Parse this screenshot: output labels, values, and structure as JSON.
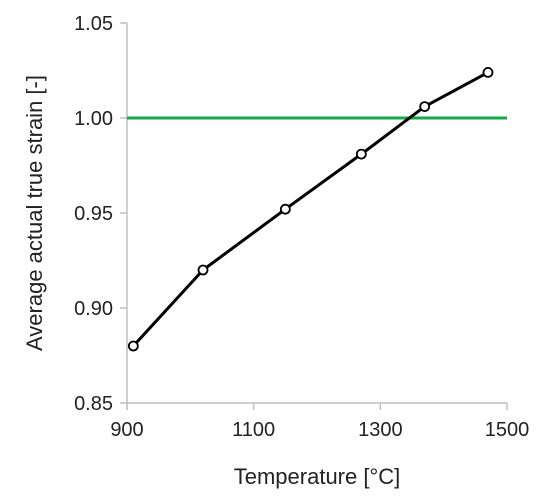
{
  "chart_data": {
    "type": "line",
    "title": "",
    "xlabel": "Temperature [°C]",
    "ylabel": "Average actual true strain [-]",
    "xlim": [
      900,
      1500
    ],
    "ylim": [
      0.85,
      1.05
    ],
    "xticks": [
      900,
      1100,
      1300,
      1500
    ],
    "xtick_labels": [
      "900",
      "1100",
      "1300",
      "1500"
    ],
    "yticks": [
      0.85,
      0.9,
      0.95,
      1.0,
      1.05
    ],
    "ytick_labels": [
      "0.85",
      "0.90",
      "0.95",
      "1.00",
      "1.05"
    ],
    "grid": false,
    "legend": "none",
    "series": [
      {
        "x": [
          910,
          1020,
          1150,
          1270,
          1370,
          1470
        ],
        "y": [
          0.88,
          0.92,
          0.952,
          0.981,
          1.006,
          1.024
        ],
        "color": "#000000",
        "marker": "open-circle"
      }
    ],
    "reference_lines": [
      {
        "y": 1.0,
        "color": "#1aa64b"
      }
    ]
  }
}
